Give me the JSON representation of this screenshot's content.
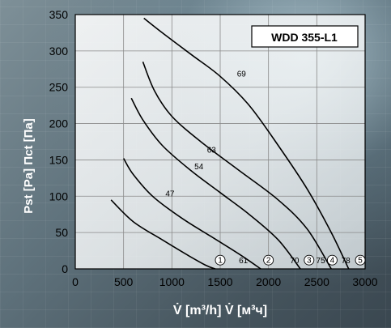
{
  "chart_data": {
    "type": "line",
    "title": "WDD 355-L1",
    "xlabel": "V̇ [m³/h]  V̇ [м³ч]",
    "ylabel": "Pst [Pa]  Πct [Па]",
    "xlim": [
      0,
      3000
    ],
    "ylim": [
      0,
      350
    ],
    "xticks": [
      0,
      500,
      1000,
      1500,
      2000,
      2500,
      3000
    ],
    "yticks": [
      0,
      50,
      100,
      150,
      200,
      250,
      300,
      350
    ],
    "grid": true,
    "series": [
      {
        "id": "1",
        "x": [
          370,
          600,
          900,
          1150,
          1350,
          1450
        ],
        "y": [
          95,
          65,
          40,
          20,
          5,
          0
        ]
      },
      {
        "id": "2",
        "x": [
          500,
          600,
          800,
          1100,
          1400,
          1700,
          1920
        ],
        "y": [
          152,
          130,
          100,
          70,
          45,
          20,
          0
        ]
      },
      {
        "id": "3",
        "x": [
          580,
          700,
          900,
          1200,
          1500,
          1800,
          2100,
          2330
        ],
        "y": [
          235,
          205,
          170,
          135,
          105,
          75,
          40,
          0
        ]
      },
      {
        "id": "4",
        "x": [
          700,
          820,
          1000,
          1300,
          1700,
          2100,
          2400,
          2650
        ],
        "y": [
          285,
          245,
          210,
          175,
          135,
          95,
          55,
          0
        ]
      },
      {
        "id": "5",
        "x": [
          710,
          900,
          1200,
          1500,
          1800,
          2100,
          2400,
          2650,
          2830
        ],
        "y": [
          345,
          325,
          295,
          265,
          225,
          170,
          110,
          50,
          0
        ]
      }
    ],
    "curve_labels": [
      {
        "text": "69",
        "x": 1720,
        "y": 265
      },
      {
        "text": "63",
        "x": 1410,
        "y": 160
      },
      {
        "text": "54",
        "x": 1280,
        "y": 137
      },
      {
        "text": "47",
        "x": 980,
        "y": 100
      },
      {
        "text": "61",
        "x": 1740,
        "y": 8
      },
      {
        "text": "70",
        "x": 2270,
        "y": 8
      },
      {
        "text": "75",
        "x": 2540,
        "y": 8
      },
      {
        "text": "78",
        "x": 2800,
        "y": 8
      }
    ],
    "point_markers": [
      {
        "text": "1",
        "x": 1500,
        "y": 12
      },
      {
        "text": "2",
        "x": 2000,
        "y": 12
      },
      {
        "text": "3",
        "x": 2420,
        "y": 12
      },
      {
        "text": "4",
        "x": 2660,
        "y": 12
      },
      {
        "text": "5",
        "x": 2950,
        "y": 12
      }
    ]
  }
}
